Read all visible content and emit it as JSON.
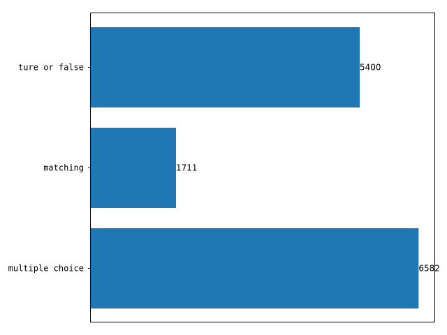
{
  "chart_data": {
    "type": "bar",
    "orientation": "horizontal",
    "categories": [
      "ture or false",
      "matching",
      "multiple choice"
    ],
    "values": [
      5400,
      1711,
      6582
    ],
    "value_labels": [
      "5400",
      "1711",
      "6582"
    ],
    "xlim": [
      0,
      6900
    ],
    "x_axis_ticks_shown": false,
    "grid": false,
    "bar_color": "#1f77b4",
    "title": "",
    "xlabel": "",
    "ylabel": ""
  }
}
